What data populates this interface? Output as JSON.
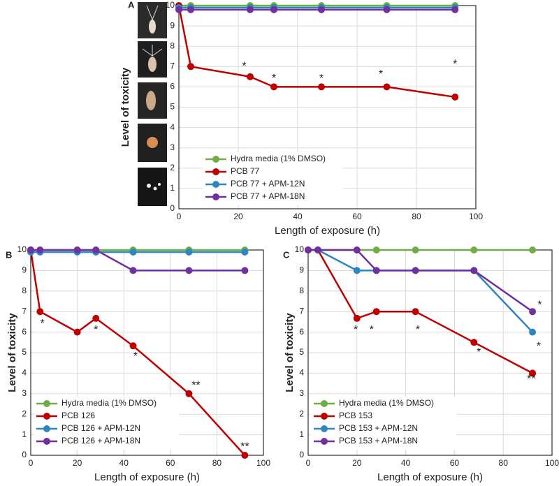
{
  "chart_data": [
    {
      "type": "line",
      "panel": "A",
      "xlabel": "Length of exposure (h)",
      "ylabel": "Level of toxicity",
      "x": [
        0,
        4,
        24,
        32,
        48,
        70,
        93
      ],
      "series": [
        {
          "name": "Hydra media (1% DMSO)",
          "color": "#70ad47",
          "values": [
            10,
            10,
            10,
            10,
            10,
            10,
            10
          ]
        },
        {
          "name": "PCB 77",
          "color": "#c00000",
          "values": [
            10,
            7,
            6.5,
            6,
            6,
            6,
            5.5
          ]
        },
        {
          "name": "PCB 77 + APM-12N",
          "color": "#2e86c1",
          "values": [
            9.9,
            9.9,
            9.9,
            9.9,
            9.9,
            9.9,
            9.9
          ]
        },
        {
          "name": "PCB 77 + APM-18N",
          "color": "#7030a0",
          "values": [
            9.8,
            9.8,
            9.8,
            9.8,
            9.8,
            9.8,
            9.8
          ]
        }
      ],
      "annotations": [
        {
          "text": "*",
          "x": 22,
          "y": 7.0
        },
        {
          "text": "*",
          "x": 32,
          "y": 6.4
        },
        {
          "text": "*",
          "x": 48,
          "y": 6.4
        },
        {
          "text": "*",
          "x": 68,
          "y": 6.6
        },
        {
          "text": "*",
          "x": 93,
          "y": 7.1
        }
      ],
      "xlim": [
        0,
        100
      ],
      "xticks": [
        0,
        20,
        40,
        60,
        80,
        100
      ],
      "ylim": [
        0,
        10
      ],
      "yticks": [
        0,
        1,
        2,
        3,
        4,
        5,
        6,
        7,
        8,
        9,
        10
      ],
      "grid": true
    },
    {
      "type": "line",
      "panel": "B",
      "xlabel": "Length of exposure (h)",
      "ylabel": "Level of toxicity",
      "x": [
        0,
        4,
        20,
        28,
        44,
        68,
        92
      ],
      "series": [
        {
          "name": "Hydra media (1% DMSO)",
          "color": "#70ad47",
          "values": [
            10,
            10,
            10,
            10,
            10,
            10,
            10
          ]
        },
        {
          "name": "PCB 126",
          "color": "#c00000",
          "values": [
            10,
            7,
            6,
            6.67,
            5.33,
            3,
            0
          ]
        },
        {
          "name": "PCB 126 + APM-12N",
          "color": "#2e86c1",
          "values": [
            9.9,
            9.9,
            9.9,
            9.9,
            9.9,
            9.9,
            9.9
          ]
        },
        {
          "name": "PCB 126 + APM-18N",
          "color": "#7030a0",
          "values": [
            10,
            10,
            10,
            10,
            9,
            9,
            9
          ]
        }
      ],
      "annotations": [
        {
          "text": "*",
          "x": 5,
          "y": 6.4
        },
        {
          "text": "*",
          "x": 28,
          "y": 6.1
        },
        {
          "text": "*",
          "x": 45,
          "y": 4.8
        },
        {
          "text": "**",
          "x": 71,
          "y": 3.4
        },
        {
          "text": "**",
          "x": 92,
          "y": 0.4
        }
      ],
      "xlim": [
        0,
        100
      ],
      "xticks": [
        0,
        20,
        40,
        60,
        80,
        100
      ],
      "ylim": [
        0,
        10
      ],
      "yticks": [
        0,
        1,
        2,
        3,
        4,
        5,
        6,
        7,
        8,
        9,
        10
      ],
      "grid": true
    },
    {
      "type": "line",
      "panel": "C",
      "xlabel": "Length of exposure (h)",
      "ylabel": "Level of toxicity",
      "x": [
        0,
        4,
        20,
        28,
        44,
        68,
        92
      ],
      "series": [
        {
          "name": "Hydra media (1% DMSO)",
          "color": "#70ad47",
          "values": [
            10,
            10,
            10,
            10,
            10,
            10,
            10
          ]
        },
        {
          "name": "PCB 153",
          "color": "#c00000",
          "values": [
            10,
            10,
            6.67,
            7,
            7,
            5.5,
            4
          ]
        },
        {
          "name": "PCB 153 + APM-12N",
          "color": "#2e86c1",
          "values": [
            10,
            10,
            9,
            9,
            9,
            9,
            6
          ]
        },
        {
          "name": "PCB 153 + APM-18N",
          "color": "#7030a0",
          "values": [
            10,
            10,
            10,
            9,
            9,
            9,
            7
          ]
        }
      ],
      "annotations": [
        {
          "text": "*",
          "x": 19.5,
          "y": 6.1
        },
        {
          "text": "*",
          "x": 26,
          "y": 6.1
        },
        {
          "text": "*",
          "x": 45,
          "y": 6.1
        },
        {
          "text": "*",
          "x": 70,
          "y": 5.0
        },
        {
          "text": "*",
          "x": 95,
          "y": 7.3
        },
        {
          "text": "*",
          "x": 94.5,
          "y": 5.3
        },
        {
          "text": "**",
          "x": 91.5,
          "y": 3.7
        }
      ],
      "xlim": [
        0,
        100
      ],
      "xticks": [
        0,
        20,
        40,
        60,
        80,
        100
      ],
      "ylim": [
        0,
        10
      ],
      "yticks": [
        0,
        1,
        2,
        3,
        4,
        5,
        6,
        7,
        8,
        9,
        10
      ],
      "grid": true
    }
  ]
}
